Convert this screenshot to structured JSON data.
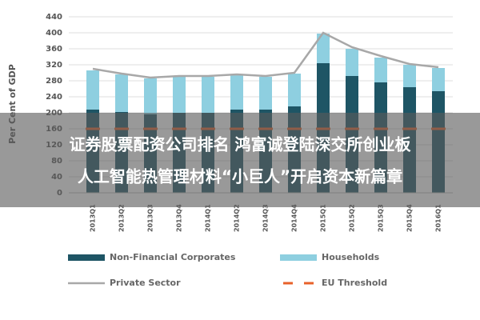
{
  "chart_data": {
    "type": "bar",
    "stacked": true,
    "ylabel": "Per Cent of GDP",
    "categories": [
      "2013Q1",
      "2013Q2",
      "2013Q3",
      "2013Q4",
      "2014Q1",
      "2014Q2",
      "2014Q3",
      "2014Q4",
      "2015Q1",
      "2015Q2",
      "2015Q3",
      "2015Q4",
      "2016Q1"
    ],
    "series": [
      {
        "name": "Non-Financial Corporates",
        "color": "#1e5565",
        "kind": "bar",
        "values": [
          208,
          202,
          196,
          200,
          200,
          208,
          208,
          216,
          324,
          292,
          276,
          264,
          254
        ]
      },
      {
        "name": "Households",
        "color": "#8ecfe0",
        "kind": "bar",
        "values": [
          98,
          94,
          90,
          90,
          90,
          86,
          82,
          82,
          74,
          68,
          62,
          56,
          58
        ]
      },
      {
        "name": "Private Sector",
        "color": "#a8a8a8",
        "kind": "line",
        "values": [
          310,
          298,
          288,
          292,
          292,
          296,
          292,
          300,
          400,
          364,
          342,
          322,
          314
        ]
      },
      {
        "name": "EU Threshold",
        "color": "#e8622a",
        "kind": "dashed",
        "values": [
          160,
          160,
          160,
          160,
          160,
          160,
          160,
          160,
          160,
          160,
          160,
          160,
          160
        ]
      }
    ],
    "ylim": [
      0,
      440
    ],
    "yticks": [
      0,
      40,
      80,
      120,
      160,
      200,
      240,
      280,
      320,
      360,
      400,
      440
    ],
    "grid": true
  },
  "overlay": {
    "lines": [
      "证券股票配资公司排名 鸿富诚登陆深交所创业板",
      "人工智能热管理材料“小巨人”开启资本新篇章"
    ]
  }
}
